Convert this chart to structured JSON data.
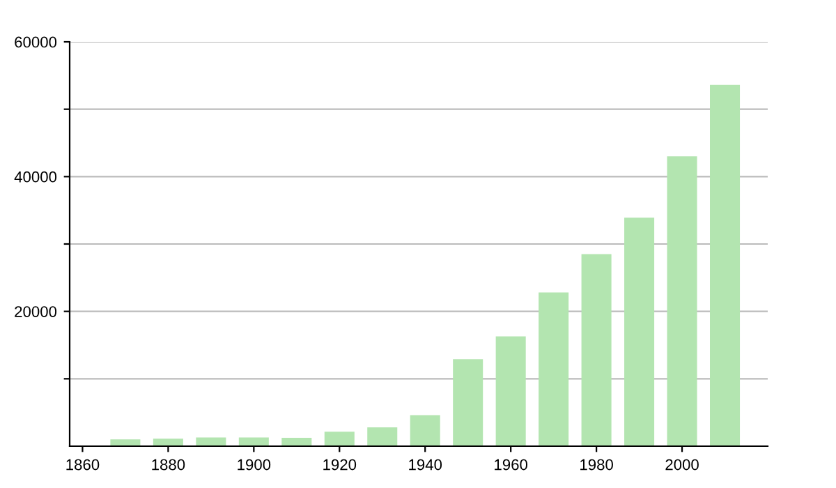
{
  "chart_data": {
    "type": "bar",
    "x": [
      1870,
      1880,
      1890,
      1900,
      1910,
      1920,
      1930,
      1940,
      1950,
      1960,
      1970,
      1980,
      1990,
      2000,
      2010
    ],
    "values": [
      1000,
      1100,
      1300,
      1300,
      1250,
      2150,
      2800,
      4600,
      12900,
      16300,
      22800,
      28500,
      33900,
      43000,
      53600
    ],
    "color": "#b3e5b0",
    "xlim": [
      1857,
      2020
    ],
    "xticks": [
      1860,
      1880,
      1900,
      1920,
      1940,
      1960,
      1980,
      2000
    ],
    "ylim": [
      0,
      60000
    ],
    "yticks": [
      {
        "value": 10000,
        "label": null
      },
      20000,
      {
        "value": 30000,
        "label": null
      },
      40000,
      {
        "value": 50000,
        "label": null
      },
      60000
    ],
    "grid": "y",
    "legend": false
  }
}
